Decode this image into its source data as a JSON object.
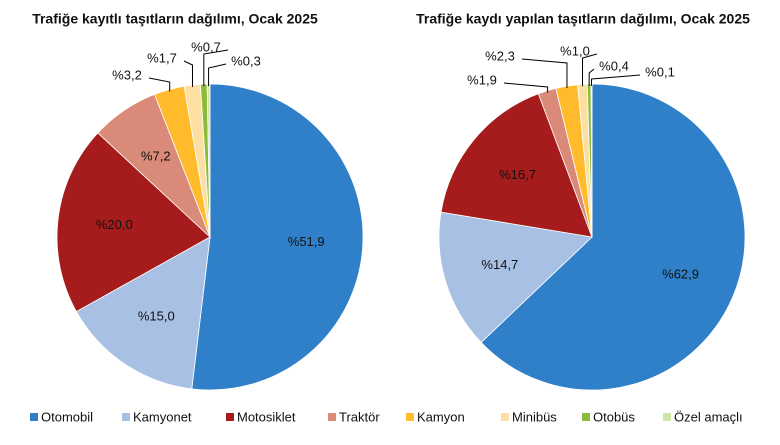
{
  "legend": {
    "categories": [
      "Otomobil",
      "Kamyonet",
      "Motosiklet",
      "Traktör",
      "Kamyon",
      "Minibüs",
      "Otobüs",
      "Özel amaçlı"
    ],
    "colors": [
      "#2f80c8",
      "#a7c0e3",
      "#a61c1c",
      "#d98a78",
      "#ffbb2b",
      "#fbe0a1",
      "#8cbb3a",
      "#cfe6a8"
    ]
  },
  "chart_data": [
    {
      "type": "pie",
      "title": "Trafiğe kayıtlı taşıtların dağılımı, Ocak 2025",
      "values": [
        51.9,
        15.0,
        20.0,
        7.2,
        3.2,
        1.7,
        0.7,
        0.3
      ],
      "value_labels": [
        "%51,9",
        "%15,0",
        "%20,0",
        "%7,2",
        "%3,2",
        "%1,7",
        "%0,7",
        "%0,3"
      ]
    },
    {
      "type": "pie",
      "title": "Trafiğe kaydı yapılan taşıtların dağılımı, Ocak 2025",
      "values": [
        62.9,
        14.7,
        16.7,
        1.9,
        2.3,
        1.0,
        0.4,
        0.1
      ],
      "value_labels": [
        "%62,9",
        "%14,7",
        "%16,7",
        "%1,9",
        "%2,3",
        "%1,0",
        "%0,4",
        "%0,1"
      ]
    }
  ]
}
